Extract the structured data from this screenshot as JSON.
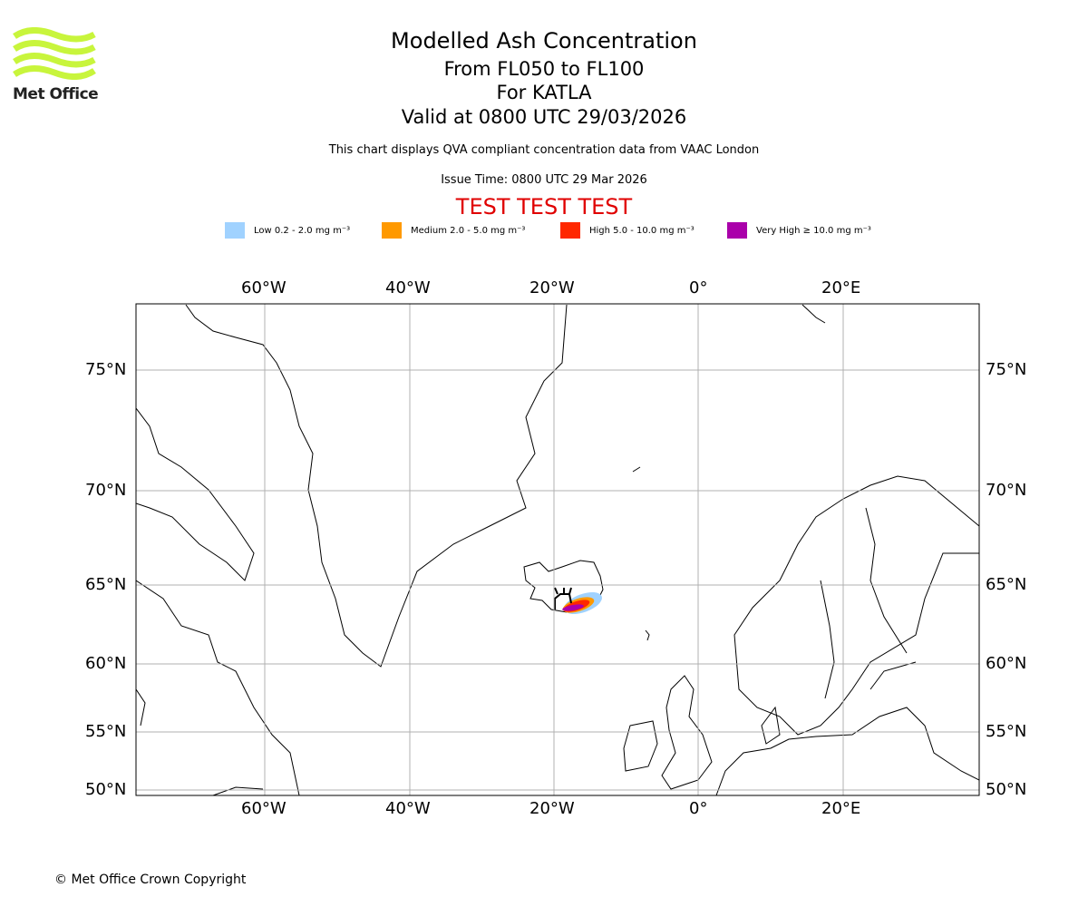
{
  "logo": {
    "text": "Met Office",
    "color": "#c8f53c"
  },
  "header": {
    "title": "Modelled Ash Concentration",
    "levels": "From FL050 to FL100",
    "volcano": "For KATLA",
    "valid": "Valid at 0800 UTC 29/03/2026",
    "note": "This chart displays QVA compliant concentration data from VAAC London",
    "issue": "Issue Time: 0800 UTC 29 Mar 2026",
    "test": "TEST TEST TEST"
  },
  "legend": [
    {
      "label": "Low 0.2 - 2.0 mg m⁻³",
      "color": "#a0d2ff"
    },
    {
      "label": "Medium 2.0 - 5.0 mg m⁻³",
      "color": "#ff9900"
    },
    {
      "label": "High 5.0 - 10.0 mg m⁻³",
      "color": "#ff2800"
    },
    {
      "label": "Very High ≥ 10.0 mg m⁻³",
      "color": "#aa00aa"
    }
  ],
  "map": {
    "lon_labels": [
      "60°W",
      "40°W",
      "20°W",
      "0°",
      "20°E"
    ],
    "lat_labels": [
      "75°N",
      "70°N",
      "65°N",
      "60°N",
      "55°N",
      "50°N"
    ]
  },
  "footer": {
    "copyright": "© Met Office Crown Copyright"
  }
}
